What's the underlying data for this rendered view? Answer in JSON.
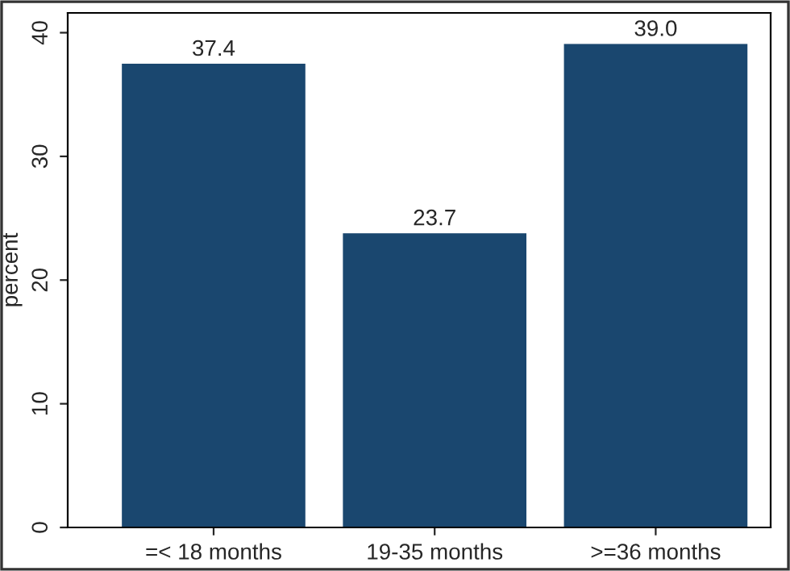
{
  "chart_data": {
    "type": "bar",
    "ylabel": "percent",
    "categories": [
      "=< 18 months",
      "19-35 months",
      ">=36 months"
    ],
    "values": [
      37.4,
      23.7,
      39.0
    ],
    "value_labels": [
      "37.4",
      "23.7",
      "39.0"
    ],
    "color": "#1a476f",
    "ylim": [
      0,
      41.6
    ],
    "yticks": [
      0,
      10,
      20,
      30,
      40
    ],
    "grid": false,
    "legend": false
  }
}
